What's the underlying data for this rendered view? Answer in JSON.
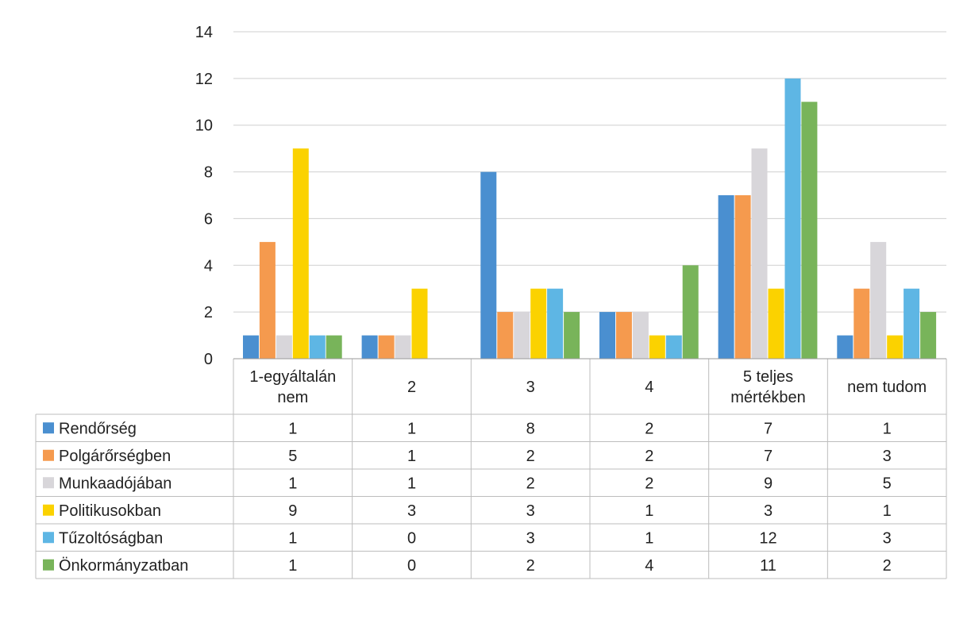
{
  "chart_data": {
    "type": "bar",
    "title": "",
    "xlabel": "",
    "ylabel": "",
    "ylim": [
      0,
      14
    ],
    "yticks": [
      0,
      2,
      4,
      6,
      8,
      10,
      12,
      14
    ],
    "grid": true,
    "legend_placement": "data-table-left",
    "categories": [
      "1-egyáltalán nem",
      "2",
      "3",
      "4",
      "5 teljes mértékben",
      "nem tudom"
    ],
    "series": [
      {
        "name": "Rendőrség",
        "color": "#4a8fd0",
        "values": [
          1,
          1,
          8,
          2,
          7,
          1
        ]
      },
      {
        "name": "Polgárőrségben",
        "color": "#f59a4e",
        "values": [
          5,
          1,
          2,
          2,
          7,
          3
        ]
      },
      {
        "name": "Munkaadójában",
        "color": "#d8d6da",
        "values": [
          1,
          1,
          2,
          2,
          9,
          5
        ]
      },
      {
        "name": "Politikusokban",
        "color": "#fbd200",
        "values": [
          9,
          3,
          3,
          1,
          3,
          1
        ]
      },
      {
        "name": "Tűzoltóságban",
        "color": "#5eb6e4",
        "values": [
          1,
          0,
          3,
          1,
          12,
          3
        ]
      },
      {
        "name": "Önkormányzatban",
        "color": "#78b45a",
        "values": [
          1,
          0,
          2,
          4,
          11,
          2
        ]
      }
    ]
  }
}
